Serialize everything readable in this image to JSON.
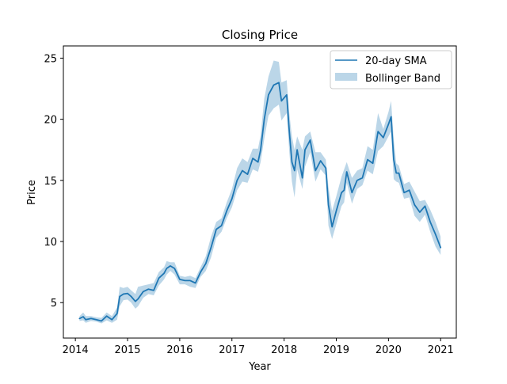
{
  "chart_data": {
    "type": "line",
    "title": "Closing Price",
    "xlabel": "Year",
    "ylabel": "Price",
    "xlim": [
      2013.77,
      2021.3
    ],
    "ylim": [
      2.1,
      26.0
    ],
    "x_ticks": [
      "2014",
      "2015",
      "2016",
      "2017",
      "2018",
      "2019",
      "2020",
      "2021"
    ],
    "y_ticks": [
      "5",
      "10",
      "15",
      "20",
      "25"
    ],
    "grid": false,
    "legend": {
      "placement": "top-right",
      "entries": [
        "20-day SMA",
        "Bollinger Band"
      ]
    },
    "colors": {
      "line": "#1f77b4",
      "band": "#1f77b4",
      "band_opacity": "0.3"
    },
    "series": [
      {
        "name": "20-day SMA",
        "kind": "line",
        "x": [
          2014.08,
          2014.15,
          2014.2,
          2014.3,
          2014.4,
          2014.5,
          2014.6,
          2014.7,
          2014.8,
          2014.85,
          2014.92,
          2015.0,
          2015.07,
          2015.15,
          2015.2,
          2015.3,
          2015.4,
          2015.5,
          2015.6,
          2015.7,
          2015.75,
          2015.82,
          2015.9,
          2016.0,
          2016.1,
          2016.2,
          2016.3,
          2016.4,
          2016.5,
          2016.6,
          2016.7,
          2016.8,
          2016.9,
          2017.0,
          2017.1,
          2017.2,
          2017.3,
          2017.4,
          2017.5,
          2017.55,
          2017.62,
          2017.7,
          2017.8,
          2017.9,
          2017.95,
          2018.05,
          2018.1,
          2018.15,
          2018.2,
          2018.25,
          2018.35,
          2018.4,
          2018.5,
          2018.6,
          2018.7,
          2018.8,
          2018.85,
          2018.92,
          2019.0,
          2019.1,
          2019.15,
          2019.2,
          2019.3,
          2019.4,
          2019.5,
          2019.6,
          2019.7,
          2019.8,
          2019.9,
          2020.0,
          2020.05,
          2020.1,
          2020.15,
          2020.2,
          2020.3,
          2020.4,
          2020.5,
          2020.6,
          2020.7,
          2020.8,
          2020.9,
          2021.0
        ],
        "y": [
          3.7,
          3.85,
          3.6,
          3.7,
          3.6,
          3.5,
          3.9,
          3.6,
          4.1,
          5.5,
          5.7,
          5.75,
          5.5,
          5.1,
          5.3,
          5.9,
          6.1,
          6.0,
          7.0,
          7.4,
          7.8,
          8.0,
          7.8,
          6.9,
          6.8,
          6.8,
          6.6,
          7.5,
          8.2,
          9.5,
          11.0,
          11.3,
          12.5,
          13.5,
          15.0,
          15.8,
          15.5,
          16.8,
          16.5,
          17.5,
          20.0,
          22.0,
          22.8,
          23.0,
          21.5,
          22.0,
          19.0,
          16.5,
          15.8,
          17.5,
          15.2,
          17.5,
          18.3,
          15.8,
          16.6,
          16.0,
          13.0,
          11.2,
          12.5,
          14.0,
          14.2,
          15.7,
          14.0,
          15.0,
          15.2,
          16.7,
          16.4,
          19.0,
          18.5,
          19.6,
          20.2,
          16.7,
          15.6,
          15.6,
          14.0,
          14.2,
          13.0,
          12.4,
          12.9,
          11.6,
          10.6,
          9.5
        ]
      },
      {
        "name": "Bollinger Band",
        "kind": "band",
        "x": [
          2014.08,
          2014.15,
          2014.2,
          2014.3,
          2014.4,
          2014.5,
          2014.6,
          2014.7,
          2014.8,
          2014.85,
          2014.92,
          2015.0,
          2015.07,
          2015.15,
          2015.2,
          2015.3,
          2015.4,
          2015.5,
          2015.6,
          2015.7,
          2015.75,
          2015.82,
          2015.9,
          2016.0,
          2016.1,
          2016.2,
          2016.3,
          2016.4,
          2016.5,
          2016.6,
          2016.7,
          2016.8,
          2016.9,
          2017.0,
          2017.1,
          2017.2,
          2017.3,
          2017.4,
          2017.5,
          2017.55,
          2017.62,
          2017.7,
          2017.8,
          2017.9,
          2017.95,
          2018.05,
          2018.1,
          2018.15,
          2018.2,
          2018.25,
          2018.35,
          2018.4,
          2018.5,
          2018.6,
          2018.7,
          2018.8,
          2018.85,
          2018.92,
          2019.0,
          2019.1,
          2019.15,
          2019.2,
          2019.3,
          2019.4,
          2019.5,
          2019.6,
          2019.7,
          2019.8,
          2019.9,
          2020.0,
          2020.05,
          2020.1,
          2020.15,
          2020.2,
          2020.3,
          2020.4,
          2020.5,
          2020.6,
          2020.7,
          2020.8,
          2020.9,
          2021.0
        ],
        "upper": [
          3.9,
          4.2,
          3.9,
          3.9,
          3.8,
          3.75,
          4.2,
          3.9,
          4.6,
          6.3,
          6.2,
          6.3,
          6.0,
          5.7,
          6.3,
          6.4,
          6.5,
          6.6,
          7.5,
          7.9,
          8.4,
          8.3,
          8.3,
          7.2,
          7.1,
          7.2,
          7.0,
          7.9,
          8.8,
          10.4,
          11.6,
          11.9,
          13.2,
          14.3,
          16.0,
          16.8,
          16.5,
          17.6,
          17.6,
          18.7,
          21.7,
          23.5,
          24.8,
          24.7,
          23.0,
          23.2,
          20.5,
          18.6,
          17.5,
          18.6,
          17.5,
          18.6,
          19.0,
          17.3,
          17.3,
          16.7,
          14.5,
          12.5,
          13.7,
          15.3,
          15.9,
          16.5,
          15.2,
          15.8,
          16.0,
          17.8,
          17.5,
          20.5,
          19.2,
          20.6,
          21.5,
          18.4,
          16.4,
          16.2,
          14.7,
          14.9,
          14.1,
          13.3,
          13.4,
          12.6,
          11.6,
          10.4
        ],
        "lower": [
          3.5,
          3.55,
          3.35,
          3.5,
          3.45,
          3.3,
          3.55,
          3.35,
          3.6,
          4.7,
          5.2,
          5.25,
          5.0,
          4.5,
          4.7,
          5.4,
          5.7,
          5.6,
          6.4,
          6.9,
          7.3,
          7.6,
          7.3,
          6.5,
          6.5,
          6.3,
          6.2,
          7.1,
          7.6,
          8.7,
          10.3,
          10.8,
          11.9,
          12.8,
          14.2,
          14.9,
          14.8,
          15.9,
          15.7,
          16.5,
          18.4,
          20.3,
          20.9,
          21.2,
          19.9,
          20.5,
          17.3,
          14.9,
          13.6,
          15.9,
          14.3,
          16.1,
          17.3,
          14.9,
          15.9,
          15.4,
          11.3,
          10.2,
          11.4,
          12.9,
          13.2,
          14.8,
          13.1,
          14.3,
          14.6,
          15.8,
          15.5,
          17.4,
          17.8,
          18.6,
          19.0,
          15.1,
          14.9,
          14.8,
          13.5,
          13.6,
          12.1,
          11.6,
          12.2,
          10.8,
          9.6,
          8.9
        ]
      }
    ]
  }
}
